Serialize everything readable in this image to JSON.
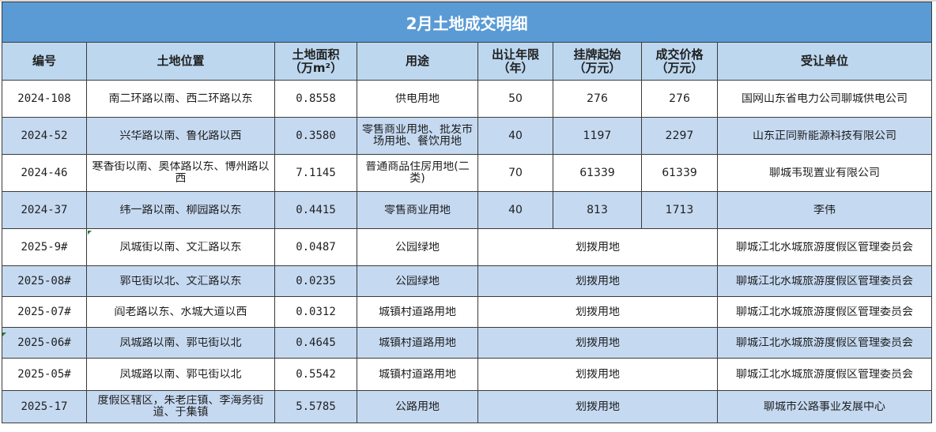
{
  "sheet": {
    "title": "2月土地成交明细",
    "headers": [
      "编号",
      "土地位置",
      "土地面积\n（万m²）",
      "用途",
      "出让年限\n（年）",
      "挂牌起始\n（万元）",
      "成交价格\n（万元）",
      "受让单位"
    ],
    "rows": [
      {
        "id": "2024-108",
        "location": "南二环路以南、西二环路以东",
        "area": "0.8558",
        "use": "供电用地",
        "years": "50",
        "start_price": "276",
        "deal_price": "276",
        "buyer": "国网山东省电力公司聊城供电公司"
      },
      {
        "id": "2024-52",
        "location": "兴华路以南、鲁化路以西",
        "area": "0.3580",
        "use": "零售商业用地、批发市场用地、餐饮用地",
        "years": "40",
        "start_price": "1197",
        "deal_price": "2297",
        "buyer": "山东正同新能源科技有限公司"
      },
      {
        "id": "2024-46",
        "location": "寒香街以南、奥体路以东、博州路以西",
        "area": "7.1145",
        "use": "普通商品住房用地(二类)",
        "years": "70",
        "start_price": "61339",
        "deal_price": "61339",
        "buyer": "聊城韦现置业有限公司"
      },
      {
        "id": "2024-37",
        "location": "纬一路以南、柳园路以东",
        "area": "0.4415",
        "use": "零售商业用地",
        "years": "40",
        "start_price": "813",
        "deal_price": "1713",
        "buyer": "李伟"
      },
      {
        "id": "2025-9#",
        "location": "凤城街以南、文汇路以东",
        "area": "0.0487",
        "use": "公园绿地",
        "allocation": "划拨用地",
        "buyer": "聊城江北水城旅游度假区管理委员会"
      },
      {
        "id": "2025-08#",
        "location": "郭屯街以北、文汇路以东",
        "area": "0.0235",
        "use": "公园绿地",
        "allocation": "划拨用地",
        "buyer": "聊城江北水城旅游度假区管理委员会"
      },
      {
        "id": "2025-07#",
        "location": "阎老路以东、水城大道以西",
        "area": "0.0312",
        "use": "城镇村道路用地",
        "allocation": "划拨用地",
        "buyer": "聊城江北水城旅游度假区管理委员会"
      },
      {
        "id": "2025-06#",
        "location": "凤城路以南、郭屯街以北",
        "area": "0.4645",
        "use": "城镇村道路用地",
        "allocation": "划拨用地",
        "buyer": "聊城江北水城旅游度假区管理委员会"
      },
      {
        "id": "2025-05#",
        "location": "凤城路以南、郭屯街以北",
        "area": "0.5542",
        "use": "城镇村道路用地",
        "allocation": "划拨用地",
        "buyer": "聊城江北水城旅游度假区管理委员会"
      },
      {
        "id": "2025-17",
        "location": "度假区辖区，朱老庄镇、李海务街道、于集镇",
        "area": "5.5785",
        "use": "公路用地",
        "allocation": "划拨用地",
        "buyer": "聊城市公路事业发展中心"
      }
    ]
  },
  "colors": {
    "title_bg": "#5b9bd5",
    "header_bg": "#bdd7ee",
    "alt_row_bg": "#c5d9f1",
    "border": "#3b3b3b",
    "marker": "#2e7d32"
  }
}
